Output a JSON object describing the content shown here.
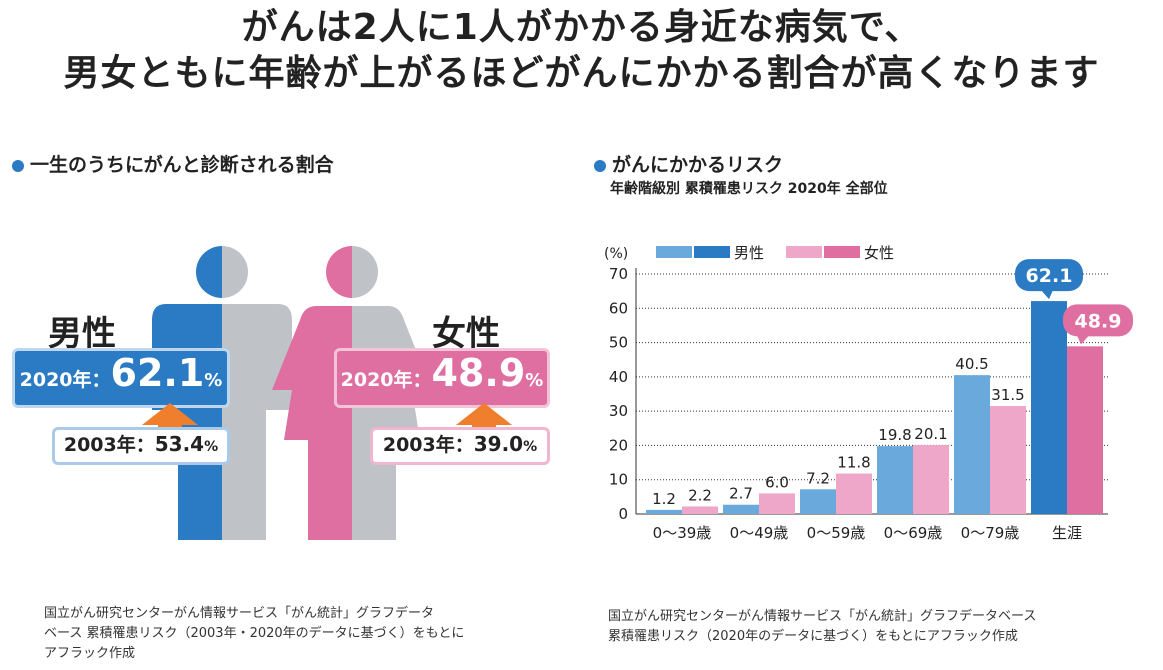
{
  "headline": {
    "line1": "がんは2人に1人がかかる身近な病気で、",
    "line2": "男女ともに年齢が上がるほどがんにかかる割合が高くなります"
  },
  "left": {
    "title": "一生のうちにがんと診断される割合",
    "male": {
      "label": "男性",
      "year_new": "2020年：",
      "value_new": "62.1",
      "year_old": "2003年：",
      "value_old": "53.4",
      "unit": "%"
    },
    "female": {
      "label": "女性",
      "year_new": "2020年：",
      "value_new": "48.9",
      "year_old": "2003年：",
      "value_old": "39.0",
      "unit": "%"
    },
    "note": [
      "国立がん研究センターがん情報サービス「がん統計」グラフデータ",
      "ベース 累積罹患リスク（2003年・2020年のデータに基づく）をもとに",
      "アフラック作成"
    ]
  },
  "right": {
    "title": "がんにかかるリスク",
    "subtitle": "年齢階級別 累積罹患リスク 2020年 全部位",
    "note": [
      "国立がん研究センターがん情報サービス「がん統計」グラフデータベース",
      "累積罹患リスク（2020年のデータに基づく）をもとにアフラック作成"
    ]
  },
  "colors": {
    "male_light": "#6aa9dc",
    "male_dark": "#2a7ac4",
    "female_light": "#eea7c8",
    "female_dark": "#df6fa1",
    "arrow": "#ef7e2d",
    "gray": "#bfc3c7"
  },
  "chart_data": {
    "type": "bar",
    "ylabel": "(%)",
    "ylim": [
      0,
      70
    ],
    "yticks": [
      0,
      10,
      20,
      30,
      40,
      50,
      60,
      70
    ],
    "categories": [
      "0〜39歳",
      "0〜49歳",
      "0〜59歳",
      "0〜69歳",
      "0〜79歳",
      "生涯"
    ],
    "series": [
      {
        "name": "男性",
        "values": [
          1.2,
          2.7,
          7.2,
          19.8,
          40.5,
          62.1
        ]
      },
      {
        "name": "女性",
        "values": [
          2.2,
          6.0,
          11.8,
          20.1,
          31.5,
          48.9
        ]
      }
    ],
    "value_labels": {
      "male": [
        "1.2",
        "2.7",
        "7.2",
        "19.8",
        "40.5",
        "62.1"
      ],
      "female": [
        "2.2",
        "6.0",
        "11.8",
        "20.1",
        "31.5",
        "48.9"
      ]
    },
    "legend": "top-left",
    "grid": true
  }
}
